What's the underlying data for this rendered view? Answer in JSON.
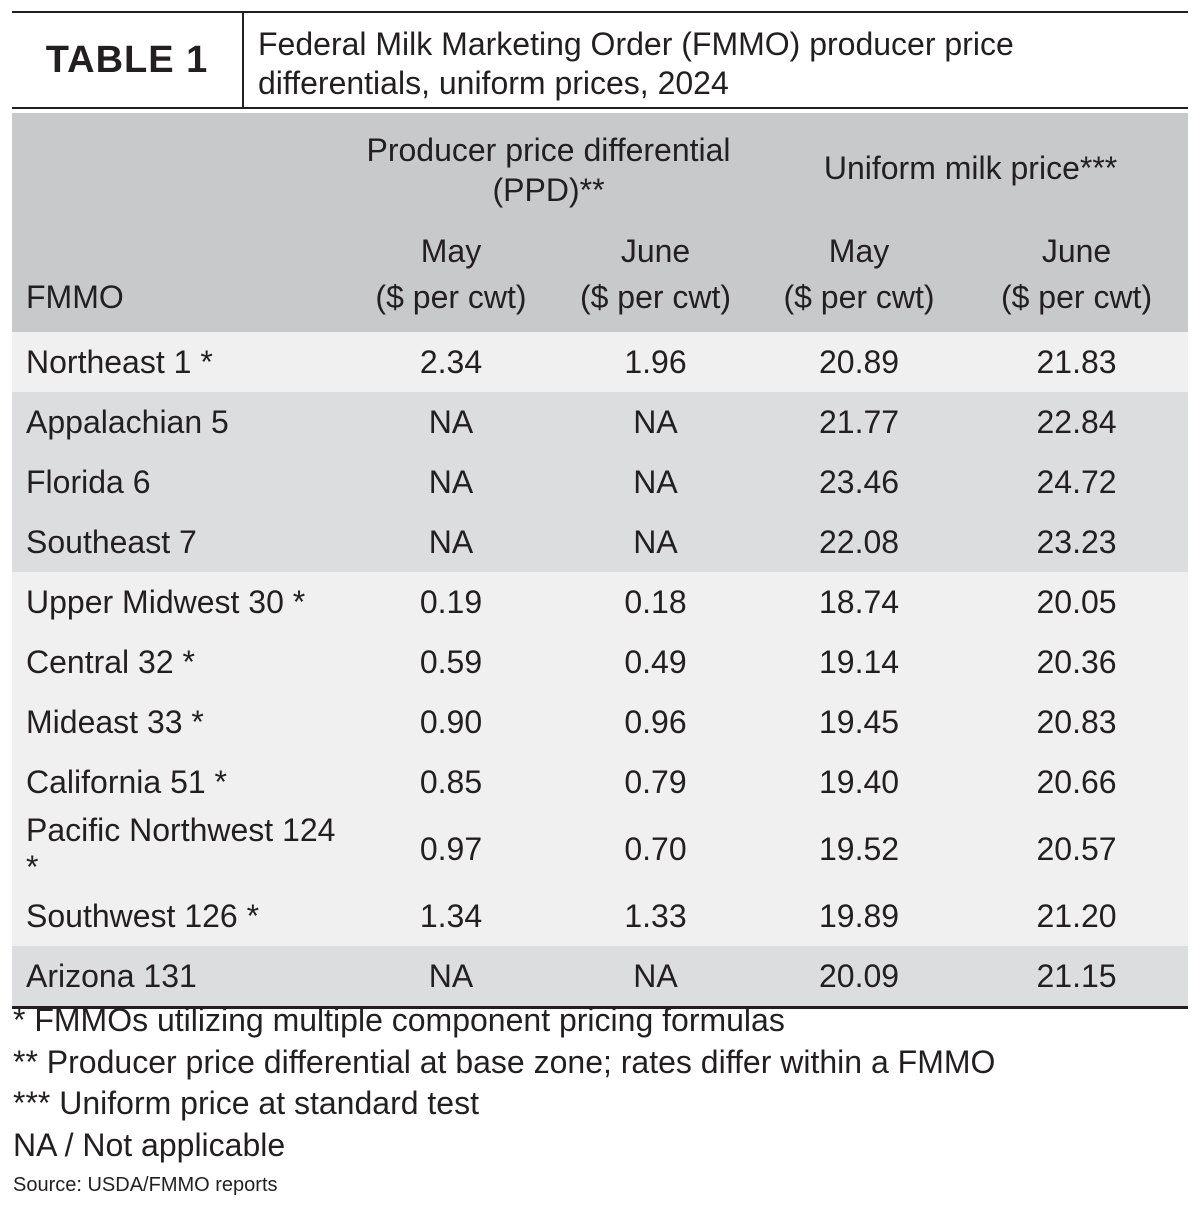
{
  "title_block": {
    "label": "TABLE 1",
    "title": "Federal Milk Marketing Order (FMMO) producer price differentials, uniform prices, 2024"
  },
  "header": {
    "ppd_group": "Producer price differential (PPD)**",
    "uniform_group": "Uniform milk price***",
    "fmmo": "FMMO",
    "months": [
      "May",
      "June",
      "May",
      "June"
    ],
    "units": [
      "($ per cwt)",
      "($ per cwt)",
      "($ per cwt)",
      "($ per cwt)"
    ]
  },
  "rows": [
    {
      "fmmo": "Northeast 1 *",
      "ppd_may": "2.34",
      "ppd_june": "1.96",
      "uniform_may": "20.89",
      "uniform_june": "21.83",
      "shade": "light"
    },
    {
      "fmmo": "Appalachian 5",
      "ppd_may": "NA",
      "ppd_june": "NA",
      "uniform_may": "21.77",
      "uniform_june": "22.84",
      "shade": "dark"
    },
    {
      "fmmo": "Florida 6",
      "ppd_may": "NA",
      "ppd_june": "NA",
      "uniform_may": "23.46",
      "uniform_june": "24.72",
      "shade": "dark"
    },
    {
      "fmmo": "Southeast 7",
      "ppd_may": "NA",
      "ppd_june": "NA",
      "uniform_may": "22.08",
      "uniform_june": "23.23",
      "shade": "dark"
    },
    {
      "fmmo": "Upper Midwest 30 *",
      "ppd_may": "0.19",
      "ppd_june": "0.18",
      "uniform_may": "18.74",
      "uniform_june": "20.05",
      "shade": "light"
    },
    {
      "fmmo": "Central 32 *",
      "ppd_may": "0.59",
      "ppd_june": "0.49",
      "uniform_may": "19.14",
      "uniform_june": "20.36",
      "shade": "light"
    },
    {
      "fmmo": "Mideast 33 *",
      "ppd_may": "0.90",
      "ppd_june": "0.96",
      "uniform_may": "19.45",
      "uniform_june": "20.83",
      "shade": "light"
    },
    {
      "fmmo": "California 51 *",
      "ppd_may": "0.85",
      "ppd_june": "0.79",
      "uniform_may": "19.40",
      "uniform_june": "20.66",
      "shade": "light"
    },
    {
      "fmmo": "Pacific Northwest 124 *",
      "ppd_may": "0.97",
      "ppd_june": "0.70",
      "uniform_may": "19.52",
      "uniform_june": "20.57",
      "shade": "light"
    },
    {
      "fmmo": "Southwest 126 *",
      "ppd_may": "1.34",
      "ppd_june": "1.33",
      "uniform_may": "19.89",
      "uniform_june": "21.20",
      "shade": "light"
    },
    {
      "fmmo": "Arizona 131",
      "ppd_may": "NA",
      "ppd_june": "NA",
      "uniform_may": "20.09",
      "uniform_june": "21.15",
      "shade": "dark"
    }
  ],
  "footnotes": [
    "* FMMOs utilizing multiple component pricing formulas",
    "** Producer price differential at base zone; rates differ within a FMMO",
    "*** Uniform price at standard test",
    "NA / Not applicable"
  ],
  "source": "Source: USDA/FMMO reports",
  "colors": {
    "header_gray": "#c8c9cb",
    "row_light": "#f0f0f1",
    "row_dark": "#dcdddf",
    "text": "#231f20"
  }
}
